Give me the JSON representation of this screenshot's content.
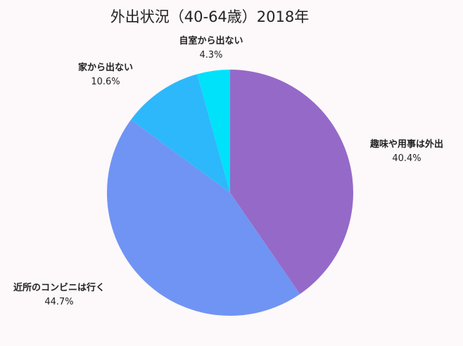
{
  "chart_data": {
    "type": "pie",
    "title": "外出状況（40-64歳）2018年",
    "slices": [
      {
        "label": "趣味や用事は外出",
        "value_text": "40.4%",
        "value": 40.4,
        "color": "#9569c8"
      },
      {
        "label": "近所のコンビニは行く",
        "value_text": "44.7%",
        "value": 44.7,
        "color": "#7094f3"
      },
      {
        "label": "家から出ない",
        "value_text": "10.6%",
        "value": 10.6,
        "color": "#2db8fb"
      },
      {
        "label": "自室から出ない",
        "value_text": "4.3%",
        "value": 4.3,
        "color": "#00e1fa"
      }
    ],
    "start_direction": "top",
    "order": "clockwise",
    "legend": "none"
  },
  "background_color": "#fdf8f9"
}
